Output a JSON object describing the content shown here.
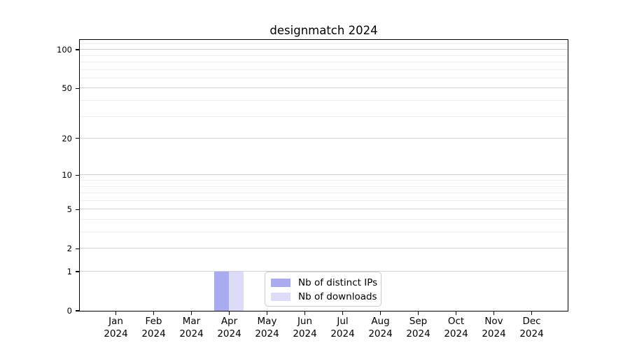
{
  "chart_data": {
    "type": "bar",
    "title": "designmatch 2024",
    "xlabel": "",
    "ylabel": "",
    "categories": [
      "Jan",
      "Feb",
      "Mar",
      "Apr",
      "May",
      "Jun",
      "Jul",
      "Aug",
      "Sep",
      "Oct",
      "Nov",
      "Dec"
    ],
    "category_year": "2024",
    "series": [
      {
        "name": "Nb of distinct IPs",
        "color": "#aaaaf0",
        "values": [
          0,
          0,
          0,
          1,
          0,
          0,
          0,
          0,
          0,
          0,
          0,
          0
        ]
      },
      {
        "name": "Nb of downloads",
        "color": "#dcdcf8",
        "values": [
          0,
          0,
          0,
          1,
          0,
          0,
          0,
          0,
          0,
          0,
          0,
          0
        ]
      }
    ],
    "y_scale": "log1p",
    "y_major_ticks": [
      0,
      1,
      2,
      5,
      10,
      20,
      50,
      100
    ],
    "y_minor_gridlines": [
      3,
      4,
      6,
      7,
      8,
      9,
      30,
      40,
      60,
      70,
      80,
      90,
      110
    ],
    "ylim": [
      0,
      119
    ],
    "grid": "horizontal-only",
    "legend_position": "lower-center-inside"
  },
  "style_colors": {
    "major_grid": "#d2d2d2",
    "minor_grid": "#eeeeee",
    "spine": "#000000",
    "legend_border": "#cbcbcb",
    "text": "#000000"
  }
}
